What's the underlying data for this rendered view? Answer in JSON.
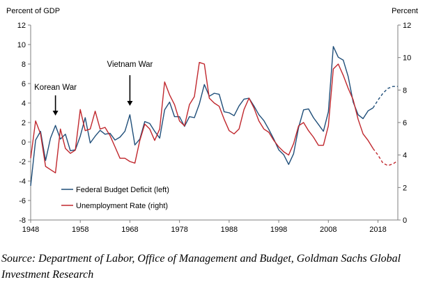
{
  "chart_data": {
    "type": "line",
    "title": "",
    "left_axis_title": "Percent of GDP",
    "right_axis_title": "Percent",
    "left_ylim": [
      -8,
      12
    ],
    "right_ylim": [
      0,
      12
    ],
    "left_ticks": [
      -8,
      -6,
      -4,
      -2,
      0,
      2,
      4,
      6,
      8,
      10,
      12
    ],
    "right_ticks": [
      0,
      2,
      4,
      6,
      8,
      10,
      12
    ],
    "xlim": [
      1948,
      2022
    ],
    "x_ticks": [
      1948,
      1958,
      1968,
      1978,
      1988,
      1998,
      2008,
      2018
    ],
    "grid": false,
    "legend_position": "bottom-left",
    "series": [
      {
        "name": "Federal Budget Deficit (left)",
        "axis": "left",
        "color": "#1f4e79",
        "x": [
          1948,
          1949,
          1950,
          1951,
          1952,
          1953,
          1954,
          1955,
          1956,
          1957,
          1958,
          1959,
          1960,
          1961,
          1962,
          1963,
          1964,
          1965,
          1966,
          1967,
          1968,
          1969,
          1970,
          1971,
          1972,
          1973,
          1974,
          1975,
          1976,
          1977,
          1978,
          1979,
          1980,
          1981,
          1982,
          1983,
          1984,
          1985,
          1986,
          1987,
          1988,
          1989,
          1990,
          1991,
          1992,
          1993,
          1994,
          1995,
          1996,
          1997,
          1998,
          1999,
          2000,
          2001,
          2002,
          2003,
          2004,
          2005,
          2006,
          2007,
          2008,
          2009,
          2010,
          2011,
          2012,
          2013,
          2014,
          2015,
          2016,
          2017
        ],
        "values": [
          -4.5,
          0.2,
          1.1,
          -1.9,
          0.4,
          1.7,
          0.3,
          0.8,
          -0.9,
          -0.8,
          0.6,
          2.5,
          -0.1,
          0.6,
          1.2,
          0.8,
          0.9,
          0.2,
          0.5,
          1.1,
          2.8,
          -0.3,
          0.3,
          2.1,
          1.9,
          1.1,
          0.4,
          3.3,
          4.1,
          2.6,
          2.6,
          1.6,
          2.6,
          2.5,
          3.9,
          5.9,
          4.7,
          5.0,
          4.9,
          3.1,
          3.0,
          2.7,
          3.7,
          4.4,
          4.5,
          3.7,
          2.8,
          2.2,
          1.3,
          0.3,
          -0.8,
          -1.3,
          -2.3,
          -1.2,
          1.5,
          3.3,
          3.4,
          2.5,
          1.8,
          1.1,
          3.1,
          9.8,
          8.7,
          8.4,
          6.7,
          4.1,
          2.8,
          2.4,
          3.2,
          3.5
        ],
        "projected_x": [
          2017,
          2018,
          2019,
          2020,
          2021,
          2022
        ],
        "projected_values": [
          3.5,
          4.3,
          5.0,
          5.5,
          5.7,
          5.7
        ]
      },
      {
        "name": "Unemployment Rate (right)",
        "axis": "right",
        "color": "#c0272d",
        "x": [
          1948,
          1949,
          1950,
          1951,
          1952,
          1953,
          1954,
          1955,
          1956,
          1957,
          1958,
          1959,
          1960,
          1961,
          1962,
          1963,
          1964,
          1965,
          1966,
          1967,
          1968,
          1969,
          1970,
          1971,
          1972,
          1973,
          1974,
          1975,
          1976,
          1977,
          1978,
          1979,
          1980,
          1981,
          1982,
          1983,
          1984,
          1985,
          1986,
          1987,
          1988,
          1989,
          1990,
          1991,
          1992,
          1993,
          1994,
          1995,
          1996,
          1997,
          1998,
          1999,
          2000,
          2001,
          2002,
          2003,
          2004,
          2005,
          2006,
          2007,
          2008,
          2009,
          2010,
          2011,
          2012,
          2013,
          2014,
          2015,
          2016,
          2017
        ],
        "values": [
          3.8,
          6.1,
          5.3,
          3.3,
          3.1,
          2.9,
          5.6,
          4.4,
          4.1,
          4.3,
          6.8,
          5.5,
          5.6,
          6.7,
          5.6,
          5.7,
          5.2,
          4.5,
          3.8,
          3.8,
          3.6,
          3.5,
          4.9,
          5.9,
          5.6,
          4.9,
          5.6,
          8.5,
          7.7,
          7.1,
          6.1,
          5.8,
          7.1,
          7.6,
          9.7,
          9.6,
          7.5,
          7.2,
          7.0,
          6.2,
          5.5,
          5.3,
          5.6,
          6.8,
          7.5,
          6.9,
          6.1,
          5.6,
          5.4,
          4.9,
          4.5,
          4.2,
          4.0,
          4.7,
          5.8,
          6.0,
          5.5,
          5.1,
          4.6,
          4.6,
          5.8,
          9.3,
          9.6,
          8.9,
          8.1,
          7.4,
          6.2,
          5.3,
          4.9,
          4.4
        ],
        "projected_x": [
          2017,
          2018,
          2019,
          2020,
          2021,
          2022
        ],
        "projected_values": [
          4.4,
          4.0,
          3.5,
          3.35,
          3.45,
          3.65
        ]
      }
    ],
    "annotations": [
      {
        "text": "Korean War",
        "x": 1953
      },
      {
        "text": "Vietnam War",
        "x": 1968
      }
    ]
  },
  "source_text": "Source: Department of Labor, Office of Management and Budget, Goldman Sachs Global Investment Research"
}
